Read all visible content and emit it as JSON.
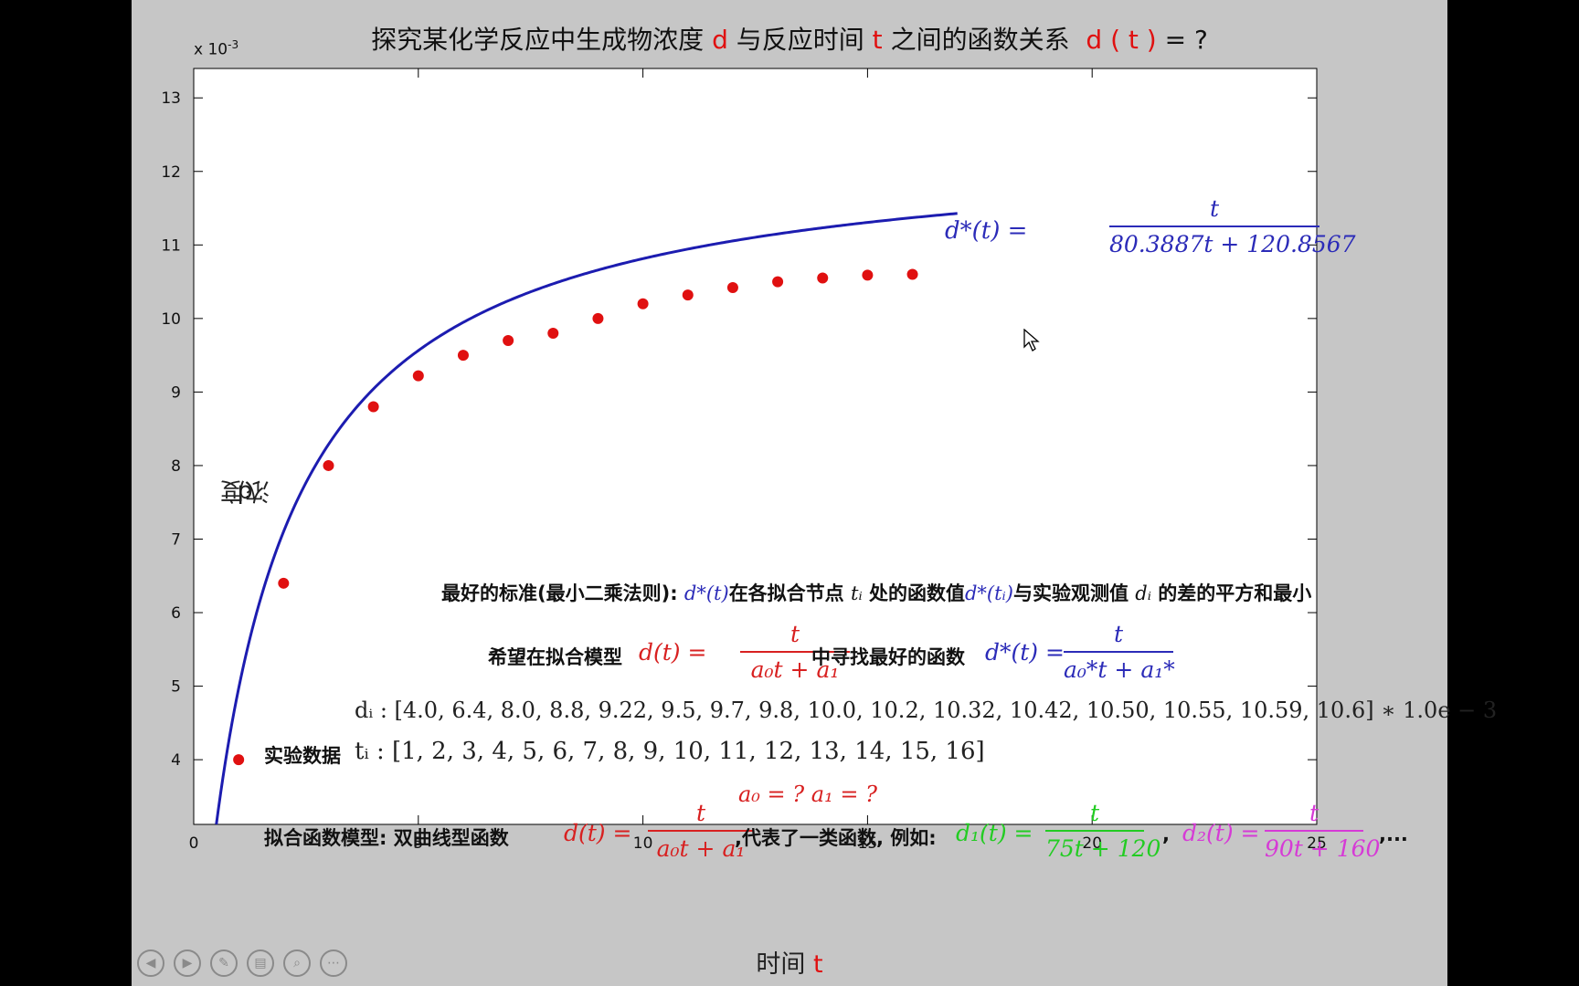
{
  "title": {
    "part1": "探究某化学反应中生成物浓度",
    "var_d": "d",
    "part2": "与反应时间",
    "var_t": "t",
    "part3": "之间的函数关系",
    "func": "d ( t )",
    "tail": "= ?"
  },
  "y_exponent": {
    "base": "x 10",
    "exp": "-3"
  },
  "ylabel": {
    "text": "浓度",
    "var": "d"
  },
  "xlabel": {
    "text": "时间",
    "var": "t"
  },
  "fit_label": {
    "lhs": "d*(t) = ",
    "numerator": "t",
    "denominator": "80.3887t + 120.8567"
  },
  "notes": {
    "criterion_prefix": "最好的标准(最小二乘法则):",
    "criterion_d_star_t": "d*(t)",
    "criterion_mid1": "在各拟合节点",
    "criterion_ti": "tᵢ",
    "criterion_mid2": "处的函数值",
    "criterion_d_star_ti": "d*(tᵢ)",
    "criterion_mid3": "与实验观测值",
    "criterion_di": "dᵢ",
    "criterion_suffix": "的差的平方和最小",
    "hope_prefix": "希望在拟合模型",
    "hope_model_lhs": "d(t) = ",
    "hope_model_num": "t",
    "hope_model_den": "a₀t + a₁",
    "hope_mid": "中寻找最好的函数",
    "hope_best_lhs": "d*(t) = ",
    "hope_best_num": "t",
    "hope_best_den": "a₀*t + a₁*",
    "di_line": "dᵢ : [4.0, 6.4, 8.0, 8.8, 9.22, 9.5, 9.7, 9.8, 10.0, 10.2, 10.32, 10.42, 10.50, 10.55, 10.59, 10.6] ∗ 1.0e − 3",
    "exp_data_label": "实验数据",
    "ti_line": "tᵢ : [1, 2, 3, 4, 5, 6, 7, 8, 9, 10, 11, 12, 13, 14, 15, 16]",
    "unknowns": "a₀ = ?    a₁ = ?",
    "model_prefix": "拟合函数模型:  双曲线型函数",
    "model_lhs": "d(t) = ",
    "model_num": "t",
    "model_den": "a₀t + a₁",
    "model_mid": ",代表了一类函数,  例如:",
    "ex1_lhs": "d₁(t) = ",
    "ex1_num": "t",
    "ex1_den": "75t + 120",
    "ex2_lhs": "d₂(t) = ",
    "ex2_num": "t",
    "ex2_den": "90t + 160",
    "sep": ",",
    "ellipsis": ",..."
  },
  "chart_data": {
    "type": "scatter",
    "title": "探究某化学反应中生成物浓度 d 与反应时间 t 之间的函数关系 d(t) = ?",
    "xlabel": "时间 t",
    "ylabel": "浓度 d",
    "xlim": [
      0,
      25
    ],
    "ylim": [
      3.12,
      13.4
    ],
    "y_scale_note": "x 10^-3",
    "x_ticks": [
      0,
      5,
      10,
      15,
      20,
      25
    ],
    "y_ticks": [
      4,
      5,
      6,
      7,
      8,
      9,
      10,
      11,
      12,
      13
    ],
    "grid": false,
    "series": [
      {
        "type": "scatter",
        "color": "#e01010",
        "x": [
          1,
          2,
          3,
          4,
          5,
          6,
          7,
          8,
          9,
          10,
          11,
          12,
          13,
          14,
          15,
          16
        ],
        "y": [
          4.0,
          6.4,
          8.0,
          8.8,
          9.22,
          9.5,
          9.7,
          9.8,
          10.0,
          10.2,
          10.32,
          10.42,
          10.5,
          10.55,
          10.59,
          10.6
        ]
      },
      {
        "type": "line",
        "color": "#1c1cb0",
        "formula": {
          "a0": 80.3887,
          "a1": 120.8567,
          "scale": 1000
        },
        "x_range": [
          0.5,
          17
        ]
      }
    ]
  },
  "toolbar": {
    "prev_glyph": "◀",
    "next_glyph": "▶",
    "pen_glyph": "✎",
    "slides_glyph": "▤",
    "zoom_glyph": "⌕",
    "more_glyph": "⋯"
  },
  "colors": {
    "slide_bg": "#c6c6c6",
    "plot_bg": "#ffffff",
    "points": "#e01010",
    "curve": "#1c1cb0"
  }
}
